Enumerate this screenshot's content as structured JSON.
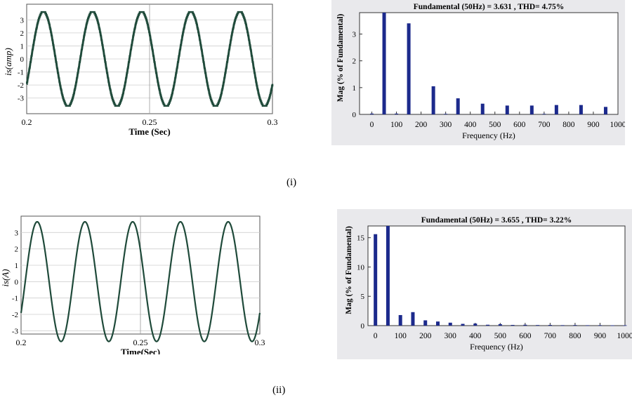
{
  "captions": {
    "top": "(i)",
    "bottom": "(ii)"
  },
  "chart_data": [
    {
      "id": "wave1",
      "type": "line",
      "title": "",
      "xlabel": "Time (Sec)",
      "ylabel": "is(amp)",
      "xlim": [
        0.2,
        0.3
      ],
      "ylim": [
        -4.2,
        4.2
      ],
      "xticks": [
        "0.2",
        "0.25",
        "0.3"
      ],
      "yticks": [
        "3",
        "2",
        "1",
        "0",
        "-1",
        "-2",
        "-3"
      ],
      "amplitude": 3.65,
      "frequency_hz": 50,
      "line_color": "#1f4a3a",
      "grid": true
    },
    {
      "id": "spec1",
      "type": "bar",
      "title": "Fundamental (50Hz) = 3.631 , THD= 4.75%",
      "xlabel": "Frequency (Hz)",
      "ylabel": "Mag (% of Fundamental)",
      "xlim": [
        -50,
        1000
      ],
      "ylim": [
        0,
        3.8
      ],
      "xticks": [
        "0",
        "100",
        "200",
        "300",
        "400",
        "500",
        "600",
        "700",
        "800",
        "900",
        "1000"
      ],
      "yticks": [
        "3",
        "2",
        "1",
        "0"
      ],
      "bar_color": "#1c2a8c",
      "x": [
        0,
        50,
        100,
        150,
        250,
        300,
        350,
        450,
        550,
        650,
        700,
        750,
        850,
        950
      ],
      "values": [
        0.03,
        3.8,
        0.03,
        3.4,
        1.05,
        0.02,
        0.6,
        0.4,
        0.33,
        0.33,
        0.02,
        0.35,
        0.35,
        0.28
      ]
    },
    {
      "id": "wave2",
      "type": "line",
      "title": "",
      "xlabel": "Time(Sec)",
      "ylabel": "is(A)",
      "xlim": [
        0.2,
        0.3
      ],
      "ylim": [
        -3.2,
        4
      ],
      "xticks": [
        "0.2",
        "0.25",
        "0.3"
      ],
      "yticks": [
        "3",
        "2",
        "1",
        "0",
        "-1",
        "-2",
        "-3"
      ],
      "amplitude": 3.655,
      "frequency_hz": 50,
      "line_color": "#1f4a3a",
      "grid": true
    },
    {
      "id": "spec2",
      "type": "bar",
      "title": "Fundamental (50Hz) = 3.655 , THD= 3.22%",
      "xlabel": "Frequency (Hz)",
      "ylabel": "Mag (% of Fundamental)",
      "xlim": [
        -30,
        1000
      ],
      "ylim": [
        0,
        17
      ],
      "xticks": [
        "0",
        "100",
        "200",
        "300",
        "400",
        "500",
        "600",
        "700",
        "800",
        "900",
        "1000"
      ],
      "yticks": [
        "15",
        "10",
        "5",
        "0"
      ],
      "bar_color": "#1c2a8c",
      "x": [
        0,
        50,
        100,
        150,
        200,
        250,
        300,
        350,
        400,
        450,
        500,
        550,
        600,
        650,
        700,
        750,
        800,
        850,
        900,
        950,
        1000
      ],
      "values": [
        15.6,
        17,
        1.8,
        2.3,
        0.9,
        0.7,
        0.5,
        0.3,
        0.35,
        0.15,
        0.25,
        0.12,
        0.15,
        0.1,
        0.12,
        0.08,
        0.1,
        0.07,
        0.08,
        0.06,
        0.06
      ]
    }
  ]
}
